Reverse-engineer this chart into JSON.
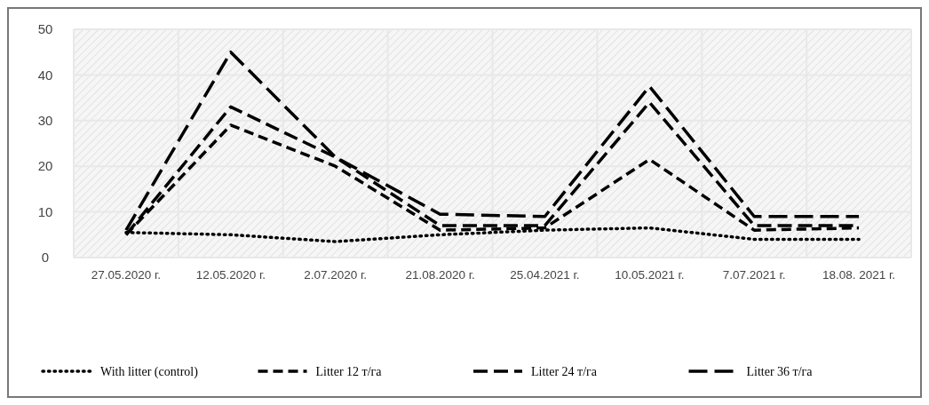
{
  "chart_data": {
    "type": "line",
    "categories": [
      "27.05.2020 г.",
      "12.05.2020 г.",
      "2.07.2020 г.",
      "21.08.2020 г.",
      "25.04.2021 г.",
      "10.05.2021 г.",
      "7.07.2021 г.",
      "18.08. 2021 г."
    ],
    "series": [
      {
        "name": "With litter (control)",
        "color": "#000000",
        "line_style": "dotted",
        "values": [
          5.5,
          5,
          3.5,
          5,
          6,
          6.5,
          4,
          4
        ]
      },
      {
        "name": "Litter 12 т/га",
        "color": "#000000",
        "line_style": "dashed",
        "values": [
          5,
          29,
          20,
          6,
          6.5,
          21.5,
          6,
          6.5
        ]
      },
      {
        "name": "Litter 24 т/га",
        "color": "#000000",
        "line_style": "dashed",
        "values": [
          5,
          33,
          22,
          7,
          7,
          34,
          7,
          7
        ]
      },
      {
        "name": "Litter 36 т/га",
        "color": "#000000",
        "line_style": "dashed",
        "values": [
          6,
          45,
          22,
          9.5,
          9,
          37.5,
          9,
          9
        ]
      }
    ],
    "ylim": [
      0,
      50
    ],
    "yticks": [
      0,
      10,
      20,
      30,
      40,
      50
    ],
    "grid": true,
    "legend": "bottom"
  }
}
